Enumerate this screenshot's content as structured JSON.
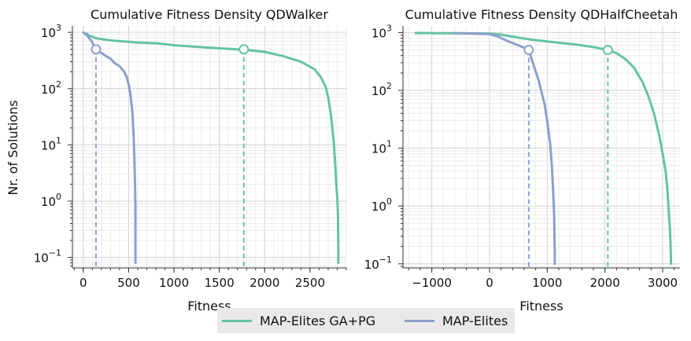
{
  "chart_data": [
    {
      "type": "line",
      "title": "Cumulative Fitness Density QDWalker",
      "xlabel": "Fitness",
      "ylabel": "Nr. of Solutions",
      "yscale": "log",
      "xlim": [
        -120,
        2900
      ],
      "ylim": [
        0.065,
        1300
      ],
      "xticks": [
        0,
        500,
        1000,
        1500,
        2000,
        2500
      ],
      "xtick_labels": [
        "0",
        "500",
        "1000",
        "1500",
        "2000",
        "2500"
      ],
      "yticks": [
        0.1,
        1,
        10,
        100,
        1000
      ],
      "ytick_labels": [
        "10",
        "10",
        "10",
        "10",
        "10"
      ],
      "ytick_exponents": [
        "−1",
        "0",
        "1",
        "2",
        "3"
      ],
      "grid": true,
      "series": [
        {
          "name": "MAP-Elites GA+PG",
          "color": "#66c2a5",
          "x": [
            40,
            60,
            150,
            300,
            600,
            800,
            1000,
            1200,
            1500,
            1770,
            2000,
            2200,
            2400,
            2550,
            2620,
            2670,
            2700,
            2730,
            2760,
            2780,
            2790,
            2800,
            2808,
            2810,
            2812,
            2812
          ],
          "y": [
            950,
            880,
            780,
            720,
            660,
            640,
            590,
            560,
            520,
            490,
            450,
            380,
            300,
            220,
            160,
            110,
            70,
            35,
            12,
            4,
            2,
            1.2,
            0.6,
            0.3,
            0.15,
            0.08
          ]
        },
        {
          "name": "MAP-Elites",
          "color": "#8da0cb",
          "x": [
            0,
            50,
            90,
            140,
            180,
            250,
            300,
            350,
            400,
            450,
            480,
            500,
            520,
            540,
            555,
            560,
            565,
            570,
            575,
            575,
            575
          ],
          "y": [
            1000,
            850,
            700,
            500,
            450,
            380,
            340,
            280,
            250,
            200,
            160,
            120,
            80,
            40,
            15,
            8,
            5,
            2,
            0.8,
            0.2,
            0.08
          ]
        }
      ],
      "markers": [
        {
          "series": "MAP-Elites",
          "x": 140,
          "y": 500,
          "color": "#8da0cb"
        },
        {
          "series": "MAP-Elites GA+PG",
          "x": 1770,
          "y": 500,
          "color": "#66c2a5"
        }
      ]
    },
    {
      "type": "line",
      "title": "Cumulative Fitness Density QDHalfCheetah",
      "xlabel": "Fitness",
      "ylabel": "",
      "yscale": "log",
      "xlim": [
        -1500,
        3300
      ],
      "ylim": [
        0.085,
        1300
      ],
      "xticks": [
        -1000,
        0,
        1000,
        2000,
        3000
      ],
      "xtick_labels": [
        "−1000",
        "0",
        "1000",
        "2000",
        "3000"
      ],
      "yticks": [
        0.1,
        1,
        10,
        100,
        1000
      ],
      "ytick_labels": [
        "10",
        "10",
        "10",
        "10",
        "10"
      ],
      "ytick_exponents": [
        "−1",
        "0",
        "1",
        "2",
        "3"
      ],
      "grid": true,
      "series": [
        {
          "name": "MAP-Elites GA+PG",
          "color": "#66c2a5",
          "x": [
            -1280,
            -500,
            0,
            200,
            400,
            700,
            1000,
            1500,
            1800,
            2050,
            2200,
            2350,
            2500,
            2650,
            2750,
            2850,
            2950,
            3000,
            3050,
            3080,
            3100,
            3120,
            3135,
            3140,
            3145
          ],
          "y": [
            980,
            970,
            960,
            920,
            850,
            760,
            700,
            620,
            560,
            500,
            440,
            350,
            250,
            140,
            80,
            40,
            15,
            8,
            4,
            2,
            1,
            0.5,
            0.25,
            0.15,
            0.1
          ]
        },
        {
          "name": "MAP-Elites",
          "color": "#8da0cb",
          "x": [
            -620,
            -300,
            0,
            150,
            300,
            500,
            680,
            750,
            850,
            950,
            1000,
            1050,
            1080,
            1100,
            1120,
            1125,
            1130,
            1130
          ],
          "y": [
            980,
            960,
            940,
            850,
            720,
            600,
            500,
            300,
            150,
            60,
            30,
            12,
            5,
            2,
            0.7,
            0.3,
            0.15,
            0.1
          ]
        }
      ],
      "markers": [
        {
          "series": "MAP-Elites",
          "x": 680,
          "y": 500,
          "color": "#8da0cb"
        },
        {
          "series": "MAP-Elites GA+PG",
          "x": 2050,
          "y": 500,
          "color": "#66c2a5"
        }
      ]
    }
  ],
  "legend": {
    "items": [
      {
        "label": "MAP-Elites GA+PG",
        "color": "#66c2a5"
      },
      {
        "label": "MAP-Elites",
        "color": "#8da0cb"
      }
    ]
  }
}
